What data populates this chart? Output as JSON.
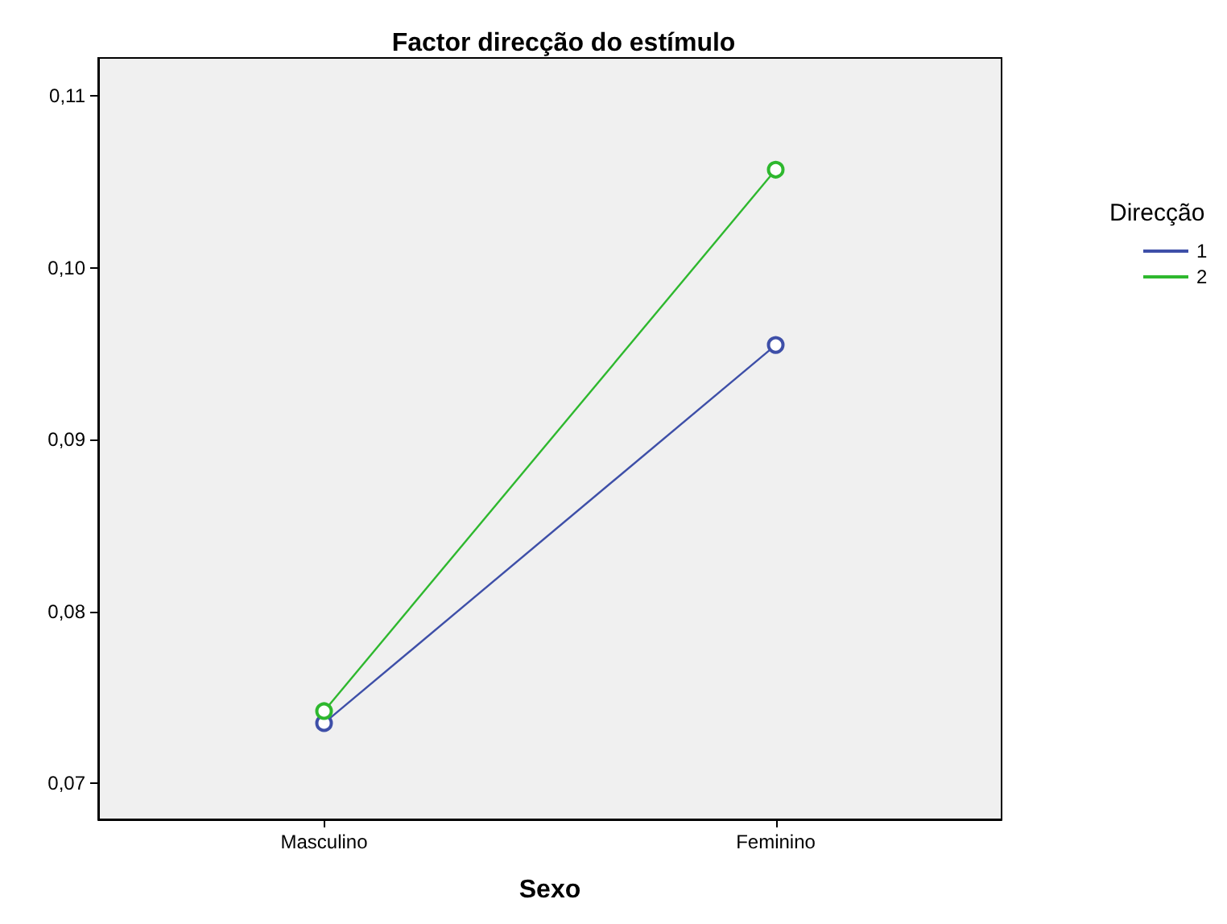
{
  "chart_data": {
    "type": "line",
    "title": "Factor direcção do estímulo",
    "xlabel": "Sexo",
    "legend_title": "Direcção",
    "categories": [
      "Masculino",
      "Feminino"
    ],
    "series": [
      {
        "name": "1",
        "color": "#3e4fa8",
        "values": [
          0.0735,
          0.0955
        ]
      },
      {
        "name": "2",
        "color": "#2eb82e",
        "values": [
          0.0742,
          0.1057
        ]
      }
    ],
    "ylim": [
      0.0679,
      0.1122
    ],
    "yticks": [
      {
        "value": 0.07,
        "label": "0,07"
      },
      {
        "value": 0.08,
        "label": "0,08"
      },
      {
        "value": 0.09,
        "label": "0,09"
      },
      {
        "value": 0.1,
        "label": "0,10"
      },
      {
        "value": 0.11,
        "label": "0,11"
      }
    ],
    "grid": false,
    "legend": "right",
    "marker": "circle",
    "line_style": "solid"
  }
}
